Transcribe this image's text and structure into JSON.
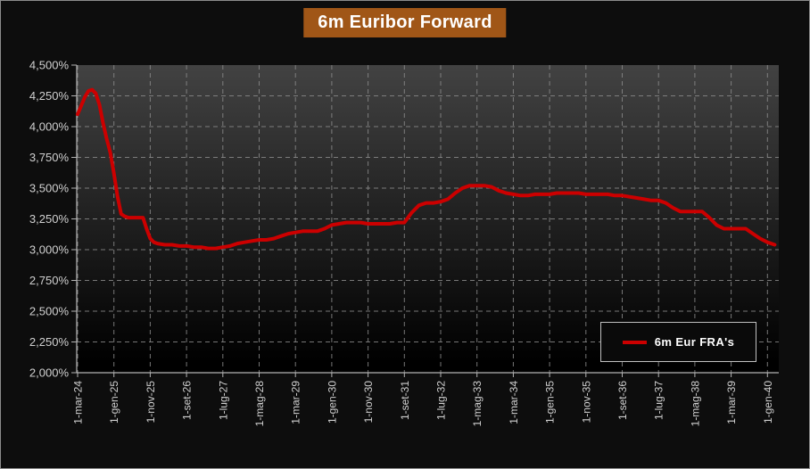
{
  "title": "6m Euribor Forward",
  "legend": {
    "series_label": "6m Eur FRA's"
  },
  "theme": {
    "background": "#0d0d0d",
    "frame_border": "#8c8c8c",
    "title_bg": "#a05617",
    "title_text": "#ffffff",
    "plot_gradient_top": "#424242",
    "plot_gradient_bottom": "#000000",
    "grid_color": "#8a8a8a",
    "axis_color": "#b4b4b4",
    "tick_label_color": "#d0d0d0",
    "series_red": "#cc0000",
    "legend_bg": "#0a0a0a",
    "legend_border": "#c0c0c0"
  },
  "chart_data": {
    "type": "line",
    "title": "6m Euribor Forward",
    "xlabel": "",
    "ylabel": "",
    "ylim": [
      2.0,
      4.5
    ],
    "y_tick_values": [
      4.5,
      4.25,
      4.0,
      3.75,
      3.5,
      3.25,
      3.0,
      2.75,
      2.5,
      2.25,
      2.0
    ],
    "y_tick_labels": [
      "4,500%",
      "4,250%",
      "4,000%",
      "3,750%",
      "3,500%",
      "3,250%",
      "3,000%",
      "2,750%",
      "2,500%",
      "2,250%",
      "2,000%"
    ],
    "x_tick_labels": [
      "1-mar-24",
      "1-gen-25",
      "1-nov-25",
      "1-set-26",
      "1-lug-27",
      "1-mag-28",
      "1-mar-29",
      "1-gen-30",
      "1-nov-30",
      "1-set-31",
      "1-lug-32",
      "1-mag-33",
      "1-mar-34",
      "1-gen-35",
      "1-nov-35",
      "1-set-36",
      "1-lug-37",
      "1-mag-38",
      "1-mar-39",
      "1-gen-40"
    ],
    "x_tick_interval_months": 10,
    "grid": "dashed",
    "legend_position": "inside-lower-right",
    "series": [
      {
        "name": "6m Eur FRA's",
        "color": "#cc0000",
        "x_unit": "months after 1-mar-24",
        "points": [
          [
            0,
            4.1
          ],
          [
            1,
            4.17
          ],
          [
            2,
            4.24
          ],
          [
            3,
            4.29
          ],
          [
            4,
            4.3
          ],
          [
            5,
            4.27
          ],
          [
            6,
            4.18
          ],
          [
            7,
            4.03
          ],
          [
            8,
            3.9
          ],
          [
            9,
            3.79
          ],
          [
            10,
            3.62
          ],
          [
            11,
            3.43
          ],
          [
            12,
            3.29
          ],
          [
            13,
            3.27
          ],
          [
            14,
            3.26
          ],
          [
            16,
            3.26
          ],
          [
            18,
            3.26
          ],
          [
            19,
            3.17
          ],
          [
            20,
            3.09
          ],
          [
            21,
            3.06
          ],
          [
            22,
            3.05
          ],
          [
            24,
            3.04
          ],
          [
            26,
            3.04
          ],
          [
            28,
            3.03
          ],
          [
            30,
            3.03
          ],
          [
            32,
            3.02
          ],
          [
            34,
            3.02
          ],
          [
            36,
            3.01
          ],
          [
            38,
            3.01
          ],
          [
            40,
            3.02
          ],
          [
            42,
            3.03
          ],
          [
            44,
            3.05
          ],
          [
            46,
            3.06
          ],
          [
            48,
            3.07
          ],
          [
            50,
            3.08
          ],
          [
            52,
            3.08
          ],
          [
            54,
            3.09
          ],
          [
            56,
            3.11
          ],
          [
            58,
            3.13
          ],
          [
            60,
            3.14
          ],
          [
            62,
            3.15
          ],
          [
            64,
            3.15
          ],
          [
            66,
            3.15
          ],
          [
            68,
            3.17
          ],
          [
            70,
            3.2
          ],
          [
            72,
            3.21
          ],
          [
            74,
            3.22
          ],
          [
            76,
            3.22
          ],
          [
            78,
            3.22
          ],
          [
            80,
            3.21
          ],
          [
            82,
            3.21
          ],
          [
            84,
            3.21
          ],
          [
            86,
            3.21
          ],
          [
            88,
            3.22
          ],
          [
            90,
            3.22
          ],
          [
            92,
            3.3
          ],
          [
            94,
            3.36
          ],
          [
            96,
            3.38
          ],
          [
            98,
            3.38
          ],
          [
            100,
            3.39
          ],
          [
            102,
            3.41
          ],
          [
            104,
            3.46
          ],
          [
            106,
            3.5
          ],
          [
            108,
            3.52
          ],
          [
            110,
            3.52
          ],
          [
            112,
            3.52
          ],
          [
            114,
            3.51
          ],
          [
            116,
            3.48
          ],
          [
            118,
            3.46
          ],
          [
            120,
            3.45
          ],
          [
            122,
            3.44
          ],
          [
            124,
            3.44
          ],
          [
            126,
            3.45
          ],
          [
            128,
            3.45
          ],
          [
            130,
            3.45
          ],
          [
            132,
            3.46
          ],
          [
            134,
            3.46
          ],
          [
            136,
            3.46
          ],
          [
            138,
            3.46
          ],
          [
            140,
            3.45
          ],
          [
            142,
            3.45
          ],
          [
            144,
            3.45
          ],
          [
            146,
            3.45
          ],
          [
            148,
            3.44
          ],
          [
            150,
            3.44
          ],
          [
            152,
            3.43
          ],
          [
            154,
            3.42
          ],
          [
            156,
            3.41
          ],
          [
            158,
            3.4
          ],
          [
            160,
            3.4
          ],
          [
            162,
            3.38
          ],
          [
            164,
            3.34
          ],
          [
            166,
            3.31
          ],
          [
            168,
            3.31
          ],
          [
            170,
            3.31
          ],
          [
            172,
            3.31
          ],
          [
            174,
            3.26
          ],
          [
            176,
            3.2
          ],
          [
            178,
            3.17
          ],
          [
            180,
            3.17
          ],
          [
            182,
            3.17
          ],
          [
            184,
            3.17
          ],
          [
            186,
            3.13
          ],
          [
            188,
            3.09
          ],
          [
            190,
            3.06
          ],
          [
            192,
            3.04
          ]
        ]
      }
    ]
  }
}
